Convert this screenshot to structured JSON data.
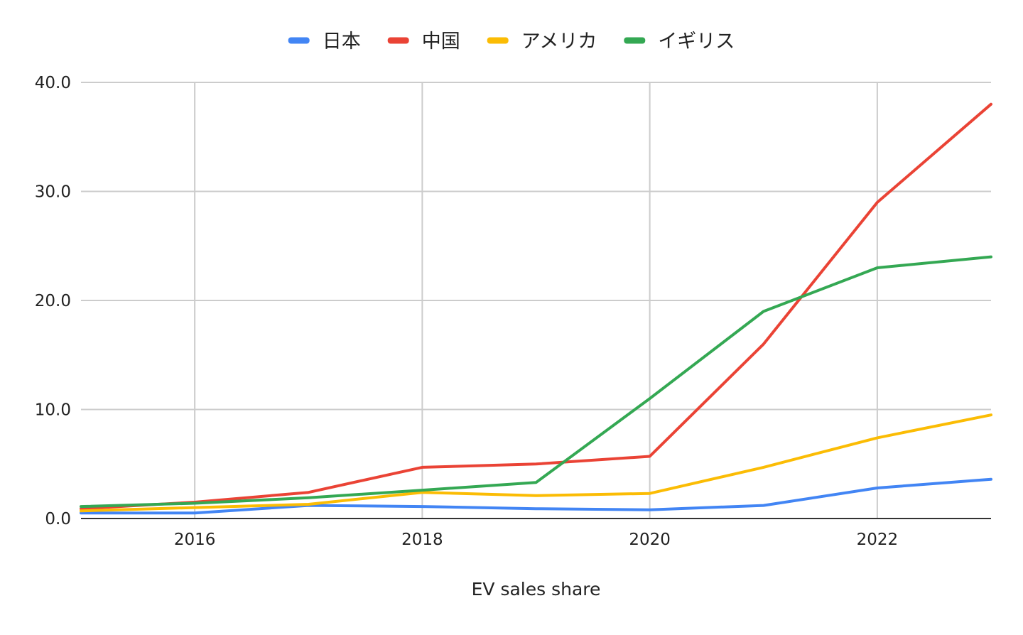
{
  "chart_data": {
    "type": "line",
    "xlabel": "EV sales share",
    "ylabel": "",
    "xlim": [
      2015,
      2023
    ],
    "ylim": [
      0,
      40
    ],
    "x_ticks": [
      "2016",
      "2018",
      "2020",
      "2022"
    ],
    "y_ticks": [
      "0.0",
      "10.0",
      "20.0",
      "30.0",
      "40.0"
    ],
    "grid": true,
    "legend_position": "top",
    "x": [
      2015,
      2016,
      2017,
      2018,
      2019,
      2020,
      2021,
      2022,
      2023
    ],
    "series": [
      {
        "name": "日本",
        "color": "#4285F4",
        "values": [
          0.5,
          0.5,
          1.2,
          1.1,
          0.9,
          0.8,
          1.2,
          2.8,
          3.6
        ]
      },
      {
        "name": "中国",
        "color": "#EA4335",
        "values": [
          0.9,
          1.5,
          2.4,
          4.7,
          5.0,
          5.7,
          16.0,
          29.0,
          38.0
        ]
      },
      {
        "name": "アメリカ",
        "color": "#FBBC04",
        "values": [
          0.7,
          1.0,
          1.3,
          2.4,
          2.1,
          2.3,
          4.7,
          7.4,
          9.5
        ]
      },
      {
        "name": "イギリス",
        "color": "#34A853",
        "values": [
          1.1,
          1.4,
          1.9,
          2.6,
          3.3,
          11.0,
          19.0,
          23.0,
          24.0
        ]
      }
    ]
  }
}
